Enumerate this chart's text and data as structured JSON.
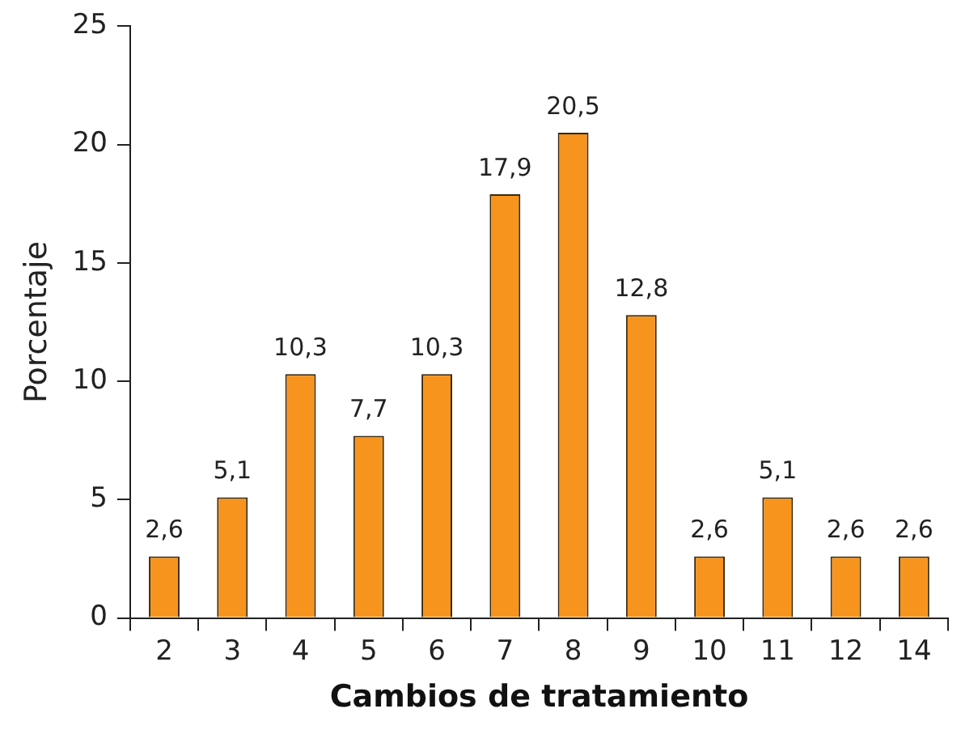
{
  "chart_data": {
    "type": "bar",
    "xlabel": "Cambios de tratamiento",
    "ylabel": "Porcentaje",
    "categories": [
      "2",
      "3",
      "4",
      "5",
      "6",
      "7",
      "8",
      "9",
      "10",
      "11",
      "12",
      "14"
    ],
    "values": [
      2.6,
      5.1,
      10.3,
      7.7,
      10.3,
      17.9,
      20.5,
      12.8,
      2.6,
      5.1,
      2.6,
      2.6
    ],
    "value_labels": [
      "2,6",
      "5,1",
      "10,3",
      "7,7",
      "10,3",
      "17,9",
      "20,5",
      "12,8",
      "2,6",
      "5,1",
      "2,6",
      "2,6"
    ],
    "color": "#f7941d",
    "ylim": [
      0,
      25
    ],
    "yticks": [
      0,
      5,
      10,
      15,
      20,
      25
    ],
    "grid": false,
    "legend": false
  }
}
